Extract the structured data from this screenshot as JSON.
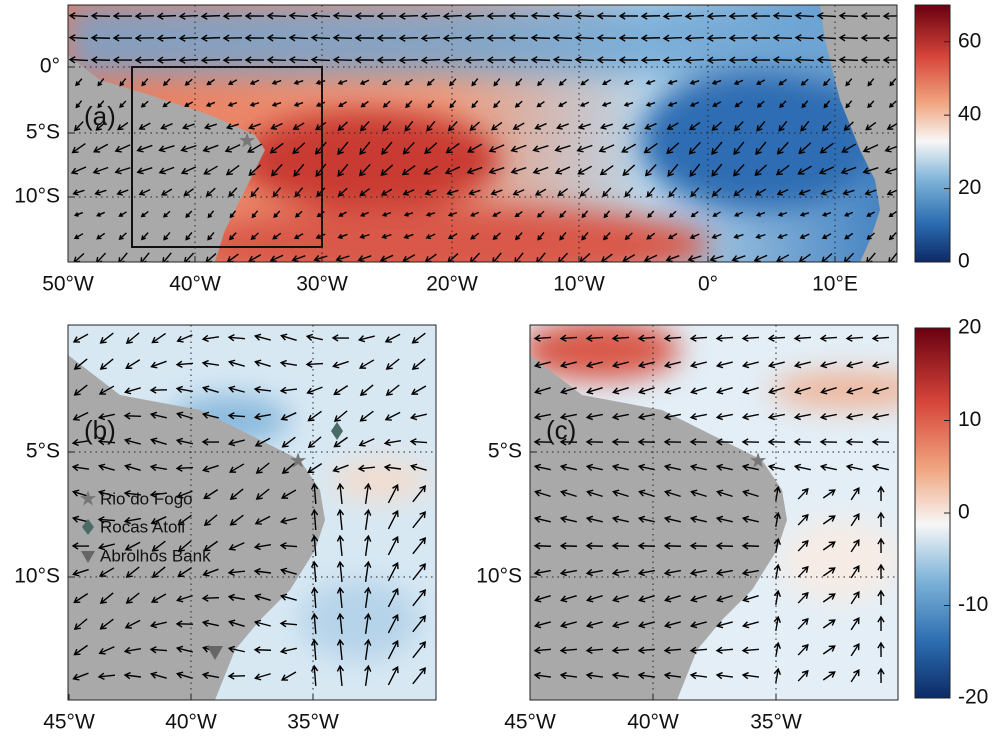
{
  "panels": [
    {
      "label": "(a)",
      "x_tick_labels": [
        "50°W",
        "40°W",
        "30°W",
        "20°W",
        "10°W",
        "0°",
        "10°E"
      ],
      "y_tick_labels": [
        "0°",
        "5°S",
        "10°S"
      ]
    },
    {
      "label": "(b)",
      "x_tick_labels": [
        "45°W",
        "40°W",
        "35°W"
      ],
      "y_tick_labels": [
        "5°S",
        "10°S"
      ],
      "legend": [
        "Rio do Fogo",
        "Rocas Atoll",
        "Abrolhos Bank"
      ]
    },
    {
      "label": "(c)",
      "x_tick_labels": [
        "45°W",
        "40°W",
        "35°W"
      ],
      "y_tick_labels": [
        "5°S",
        "10°S"
      ]
    }
  ],
  "colorbars": [
    {
      "lim": [
        0,
        70
      ],
      "ticks": [
        0,
        20,
        40,
        60
      ]
    },
    {
      "lim": [
        -20,
        20
      ],
      "ticks": [
        -20,
        -10,
        0,
        10,
        20
      ]
    }
  ]
}
